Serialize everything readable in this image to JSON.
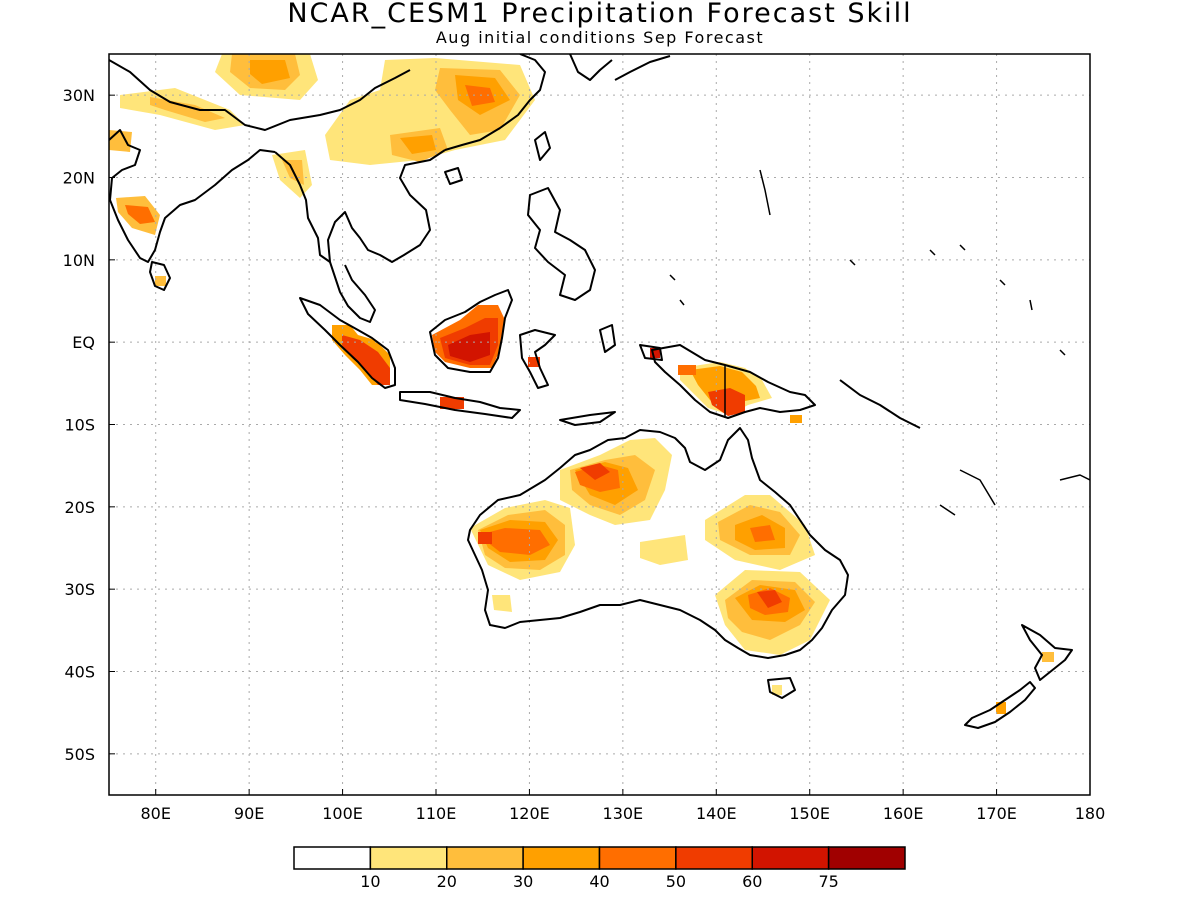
{
  "title": "NCAR_CESM1 Precipitation Forecast Skill",
  "subtitle": "Aug initial conditions  Sep Forecast",
  "map": {
    "lon_range": [
      75,
      180
    ],
    "lat_range": [
      -55,
      35
    ],
    "lon_ticks": [
      "80E",
      "90E",
      "100E",
      "110E",
      "120E",
      "130E",
      "140E",
      "150E",
      "160E",
      "170E",
      "180"
    ],
    "lon_tick_values": [
      80,
      90,
      100,
      110,
      120,
      130,
      140,
      150,
      160,
      170,
      180
    ],
    "lat_ticks": [
      "30N",
      "20N",
      "10N",
      "EQ",
      "10S",
      "20S",
      "30S",
      "40S",
      "50S"
    ],
    "lat_tick_values": [
      30,
      20,
      10,
      0,
      -10,
      -20,
      -30,
      -40,
      -50
    ],
    "grid": "dotted"
  },
  "colorbar": {
    "labels": [
      "10",
      "20",
      "30",
      "40",
      "50",
      "60",
      "75"
    ],
    "colors": [
      "#ffffff",
      "#ffe57a",
      "#ffbe3c",
      "#ffa000",
      "#ff6e00",
      "#f03c00",
      "#d21400",
      "#a00000"
    ]
  },
  "skill_regions": [
    {
      "lon": 79.2,
      "lat": 15.2,
      "level": 4
    },
    {
      "lon": 77.5,
      "lat": 24,
      "level": 2
    },
    {
      "lon": 93,
      "lat": 31.5,
      "level": 3
    },
    {
      "lon": 90,
      "lat": 29,
      "level": 2
    },
    {
      "lon": 95.5,
      "lat": 20,
      "level": 3
    },
    {
      "lon": 107,
      "lat": 24,
      "level": 4
    },
    {
      "lon": 116,
      "lat": 30,
      "level": 4
    },
    {
      "lon": 100,
      "lat": 26,
      "level": 2
    },
    {
      "lon": 102.5,
      "lat": -3.5,
      "level": 6
    },
    {
      "lon": 112,
      "lat": -7.5,
      "level": 6
    },
    {
      "lon": 114.5,
      "lat": -1,
      "level": 6
    },
    {
      "lon": 121,
      "lat": -2.5,
      "level": 6
    },
    {
      "lon": 132,
      "lat": -1,
      "level": 6
    },
    {
      "lon": 142,
      "lat": -7,
      "level": 6
    },
    {
      "lon": 137,
      "lat": -3.5,
      "level": 5
    },
    {
      "lon": 149,
      "lat": -9.5,
      "level": 3
    },
    {
      "lon": 127,
      "lat": -17,
      "level": 6
    },
    {
      "lon": 120,
      "lat": -24.5,
      "level": 5
    },
    {
      "lon": 131,
      "lat": -13.5,
      "level": 2
    },
    {
      "lon": 140,
      "lat": -24,
      "level": 2
    },
    {
      "lon": 145,
      "lat": -23,
      "level": 5
    },
    {
      "lon": 145,
      "lat": -31,
      "level": 6
    },
    {
      "lon": 145,
      "lat": -36,
      "level": 3
    },
    {
      "lon": 175.5,
      "lat": -38,
      "level": 4
    },
    {
      "lon": 170.5,
      "lat": -44.5,
      "level": 3
    },
    {
      "lon": 146.5,
      "lat": -42,
      "level": 2
    }
  ]
}
